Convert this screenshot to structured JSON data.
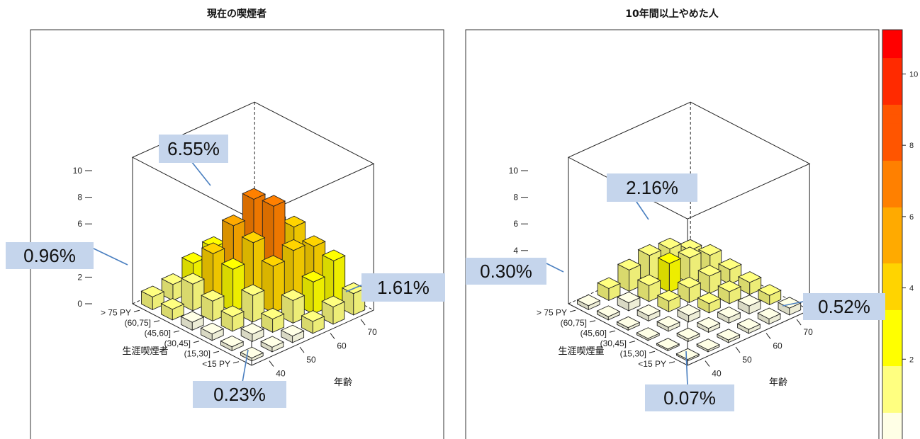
{
  "chart_data": [
    {
      "type": "bar3d",
      "title": "現在の喫煙者",
      "zlabel_ticks": [
        "0",
        "2",
        "4",
        "6",
        "8",
        "10"
      ],
      "zlim": [
        0,
        11
      ],
      "y_axis_label": "生涯喫煙者",
      "y_categories": [
        "<15 PY",
        "(15,30]",
        "(30,45]",
        "(45,60]",
        "(60,75]",
        "> 75 PY"
      ],
      "x_axis_label": "年齢",
      "x_tick_labels": [
        "40",
        "50",
        "60",
        "70"
      ],
      "x_count": 6,
      "values": [
        [
          0.23,
          0.35,
          0.5,
          0.9,
          1.3,
          1.61
        ],
        [
          0.3,
          0.55,
          1.0,
          1.7,
          2.4,
          3.3
        ],
        [
          0.5,
          1.1,
          2.0,
          3.5,
          4.0,
          3.6
        ],
        [
          0.6,
          1.5,
          3.2,
          4.5,
          6.55,
          4.3
        ],
        [
          0.8,
          2.0,
          3.6,
          5.0,
          6.3,
          3.9
        ],
        [
          0.96,
          1.2,
          2.1,
          2.6,
          3.3,
          2.8
        ]
      ],
      "callouts": [
        {
          "label": "6.55%"
        },
        {
          "label": "0.96%"
        },
        {
          "label": "1.61%"
        },
        {
          "label": "0.23%"
        }
      ]
    },
    {
      "type": "bar3d",
      "title": "10年間以上やめた人",
      "zlabel_ticks": [
        "2",
        "4",
        "6",
        "8",
        "10"
      ],
      "zlim": [
        0,
        11
      ],
      "y_axis_label": "生涯喫煙量",
      "y_categories": [
        "<15 PY",
        "(15,30]",
        "(30,45]",
        "(45,60]",
        "(60,75]",
        "> 75 PY"
      ],
      "x_axis_label": "年齢",
      "x_tick_labels": [
        "40",
        "50",
        "60",
        "70"
      ],
      "x_count": 6,
      "values": [
        [
          0.07,
          0.15,
          0.2,
          0.3,
          0.4,
          0.52
        ],
        [
          0.1,
          0.2,
          0.3,
          0.4,
          0.6,
          0.7
        ],
        [
          0.15,
          0.3,
          0.5,
          0.7,
          0.9,
          0.9
        ],
        [
          0.2,
          0.4,
          0.8,
          1.1,
          1.3,
          1.1
        ],
        [
          0.25,
          0.6,
          1.2,
          2.16,
          1.9,
          1.4
        ],
        [
          0.3,
          0.9,
          1.6,
          2.0,
          1.8,
          1.0
        ]
      ],
      "callouts": [
        {
          "label": "2.16%"
        },
        {
          "label": "0.30%"
        },
        {
          "label": "0.52%"
        },
        {
          "label": "0.07%"
        }
      ]
    }
  ],
  "colorkey": {
    "ticks": [
      "2",
      "4",
      "6",
      "8",
      "10"
    ],
    "range": [
      0,
      11
    ],
    "colors": [
      "#ffffe6",
      "#ffff80",
      "#ffff00",
      "#ffd400",
      "#ffaa00",
      "#ff8000",
      "#ff5500",
      "#ff2a00",
      "#ff0000"
    ]
  },
  "callout_style": {
    "fill": "#c5d5ec",
    "line": "#4a7fc0"
  }
}
